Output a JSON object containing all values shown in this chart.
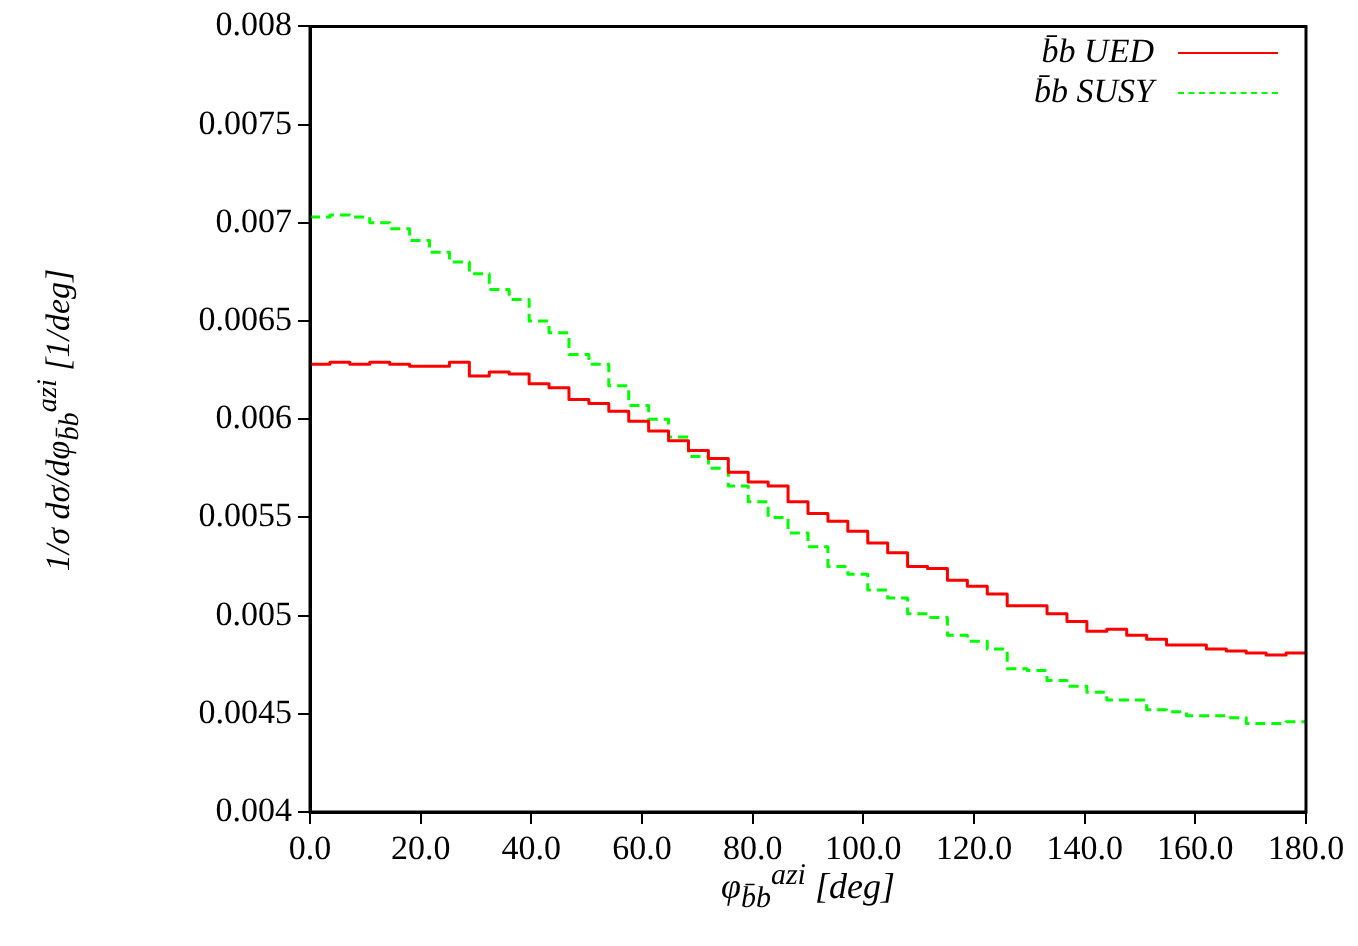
{
  "chart_data": {
    "type": "histogram",
    "xlabel": "φ$_{b̄b}$$^{azi}$ [deg]",
    "ylabel": "1/σ dσ/dφ$_{b̄b}$$^{azi}$ [1/deg]",
    "bins": [
      0,
      3.6,
      7.2,
      10.8,
      14.4,
      18,
      21.6,
      25.2,
      28.8,
      32.4,
      36,
      39.6,
      43.2,
      46.8,
      50.4,
      54,
      57.6,
      61.2,
      64.8,
      68.4,
      72,
      75.6,
      79.2,
      82.8,
      86.4,
      90,
      93.6,
      97.2,
      100.8,
      104.4,
      108,
      111.6,
      115.2,
      118.8,
      122.4,
      126,
      129.6,
      133.2,
      136.8,
      140.4,
      144,
      147.6,
      151.2,
      154.8,
      158.4,
      162,
      165.6,
      169.2,
      172.8,
      176.4,
      180
    ],
    "series": [
      {
        "name": "b̄b UED",
        "color": "#ff0000",
        "line_style": "solid",
        "values": [
          0.00628,
          0.00629,
          0.00628,
          0.00629,
          0.00628,
          0.00627,
          0.00627,
          0.00629,
          0.00622,
          0.00624,
          0.00623,
          0.00618,
          0.00616,
          0.0061,
          0.00608,
          0.00604,
          0.00599,
          0.00594,
          0.00589,
          0.00584,
          0.0058,
          0.00573,
          0.00568,
          0.00566,
          0.00558,
          0.00552,
          0.00548,
          0.00543,
          0.00537,
          0.00532,
          0.00525,
          0.00524,
          0.00518,
          0.00515,
          0.00511,
          0.00505,
          0.00505,
          0.00501,
          0.00497,
          0.00492,
          0.00493,
          0.0049,
          0.00488,
          0.00485,
          0.00485,
          0.00483,
          0.00482,
          0.00481,
          0.0048,
          0.00481
        ]
      },
      {
        "name": "b̄b SUSY",
        "color": "#00ff00",
        "line_style": "dashed",
        "values": [
          0.00703,
          0.00704,
          0.00703,
          0.007,
          0.00697,
          0.00691,
          0.00685,
          0.0068,
          0.00674,
          0.00666,
          0.00661,
          0.0065,
          0.00644,
          0.00633,
          0.00628,
          0.00617,
          0.00607,
          0.006,
          0.00591,
          0.00581,
          0.00575,
          0.00566,
          0.00558,
          0.0055,
          0.00542,
          0.00535,
          0.00525,
          0.00521,
          0.00513,
          0.00509,
          0.00501,
          0.00499,
          0.0049,
          0.00487,
          0.00483,
          0.00473,
          0.00472,
          0.00467,
          0.00464,
          0.00461,
          0.00457,
          0.00457,
          0.00452,
          0.00451,
          0.00449,
          0.00449,
          0.00448,
          0.00445,
          0.00445,
          0.00446
        ]
      }
    ],
    "xlim": [
      0,
      180
    ],
    "xticks": [
      {
        "value": 0,
        "label": "0.0"
      },
      {
        "value": 20,
        "label": "20.0"
      },
      {
        "value": 40,
        "label": "40.0"
      },
      {
        "value": 60,
        "label": "60.0"
      },
      {
        "value": 80,
        "label": "80.0"
      },
      {
        "value": 100,
        "label": "100.0"
      },
      {
        "value": 120,
        "label": "120.0"
      },
      {
        "value": 140,
        "label": "140.0"
      },
      {
        "value": 160,
        "label": "160.0"
      },
      {
        "value": 180,
        "label": "180.0"
      }
    ],
    "ylim": [
      0.004,
      0.008
    ],
    "yticks": [
      0.004,
      0.0045,
      0.005,
      0.0055,
      0.006,
      0.0065,
      0.007,
      0.0075,
      0.008
    ],
    "grid": false,
    "legend": "top right"
  }
}
